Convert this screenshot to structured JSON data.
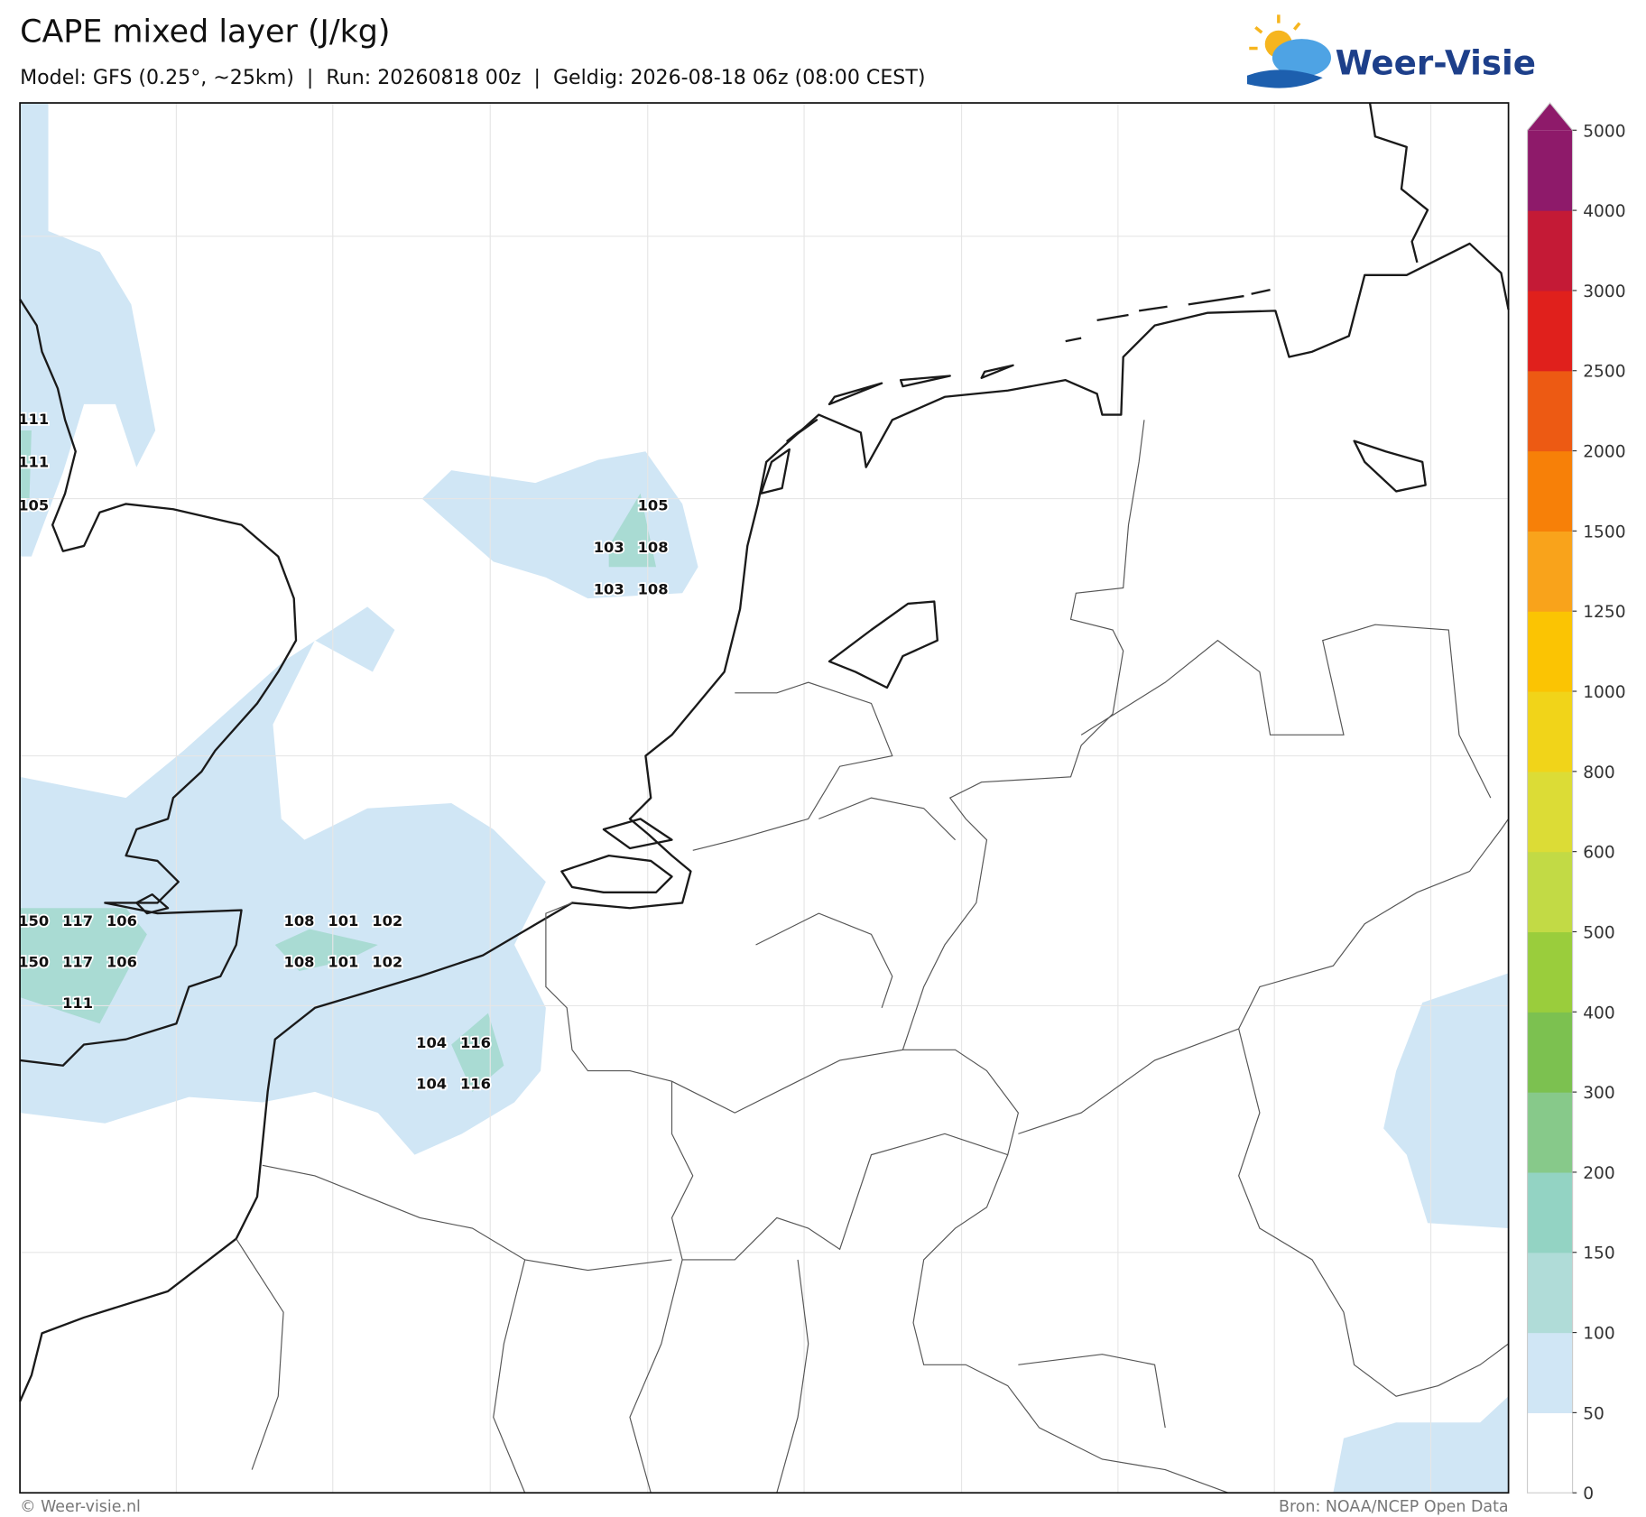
{
  "header": {
    "title": "CAPE mixed layer (J/kg)",
    "subtitle": "Model: GFS (0.25°, ~25km)  |  Run: 20260818 00z  |  Geldig: 2026-08-18 06z (08:00 CEST)",
    "logo": "Weer-Visie"
  },
  "map": {
    "labels": [
      111,
      111,
      105,
      105,
      103,
      108,
      103,
      108,
      150,
      117,
      106,
      150,
      117,
      106,
      111,
      108,
      101,
      102,
      108,
      101,
      102,
      104,
      116,
      104,
      116
    ]
  },
  "colorbar": {
    "ticks": [
      0,
      50,
      100,
      150,
      200,
      300,
      400,
      500,
      600,
      800,
      1000,
      1250,
      1500,
      2000,
      2500,
      3000,
      4000,
      5000
    ],
    "colors": [
      "#ffffff",
      "#d0e6f5",
      "#b0dcd8",
      "#93d3c3",
      "#87c98a",
      "#7cc150",
      "#9acd3c",
      "#c2da45",
      "#dcdc36",
      "#f1d419",
      "#fbc403",
      "#f9a31b",
      "#f78008",
      "#ed5a13",
      "#e0201c",
      "#c41a36",
      "#8e1a6a"
    ]
  },
  "footer": {
    "left": "© Weer-visie.nl",
    "right": "Bron: NOAA/NCEP Open Data"
  }
}
